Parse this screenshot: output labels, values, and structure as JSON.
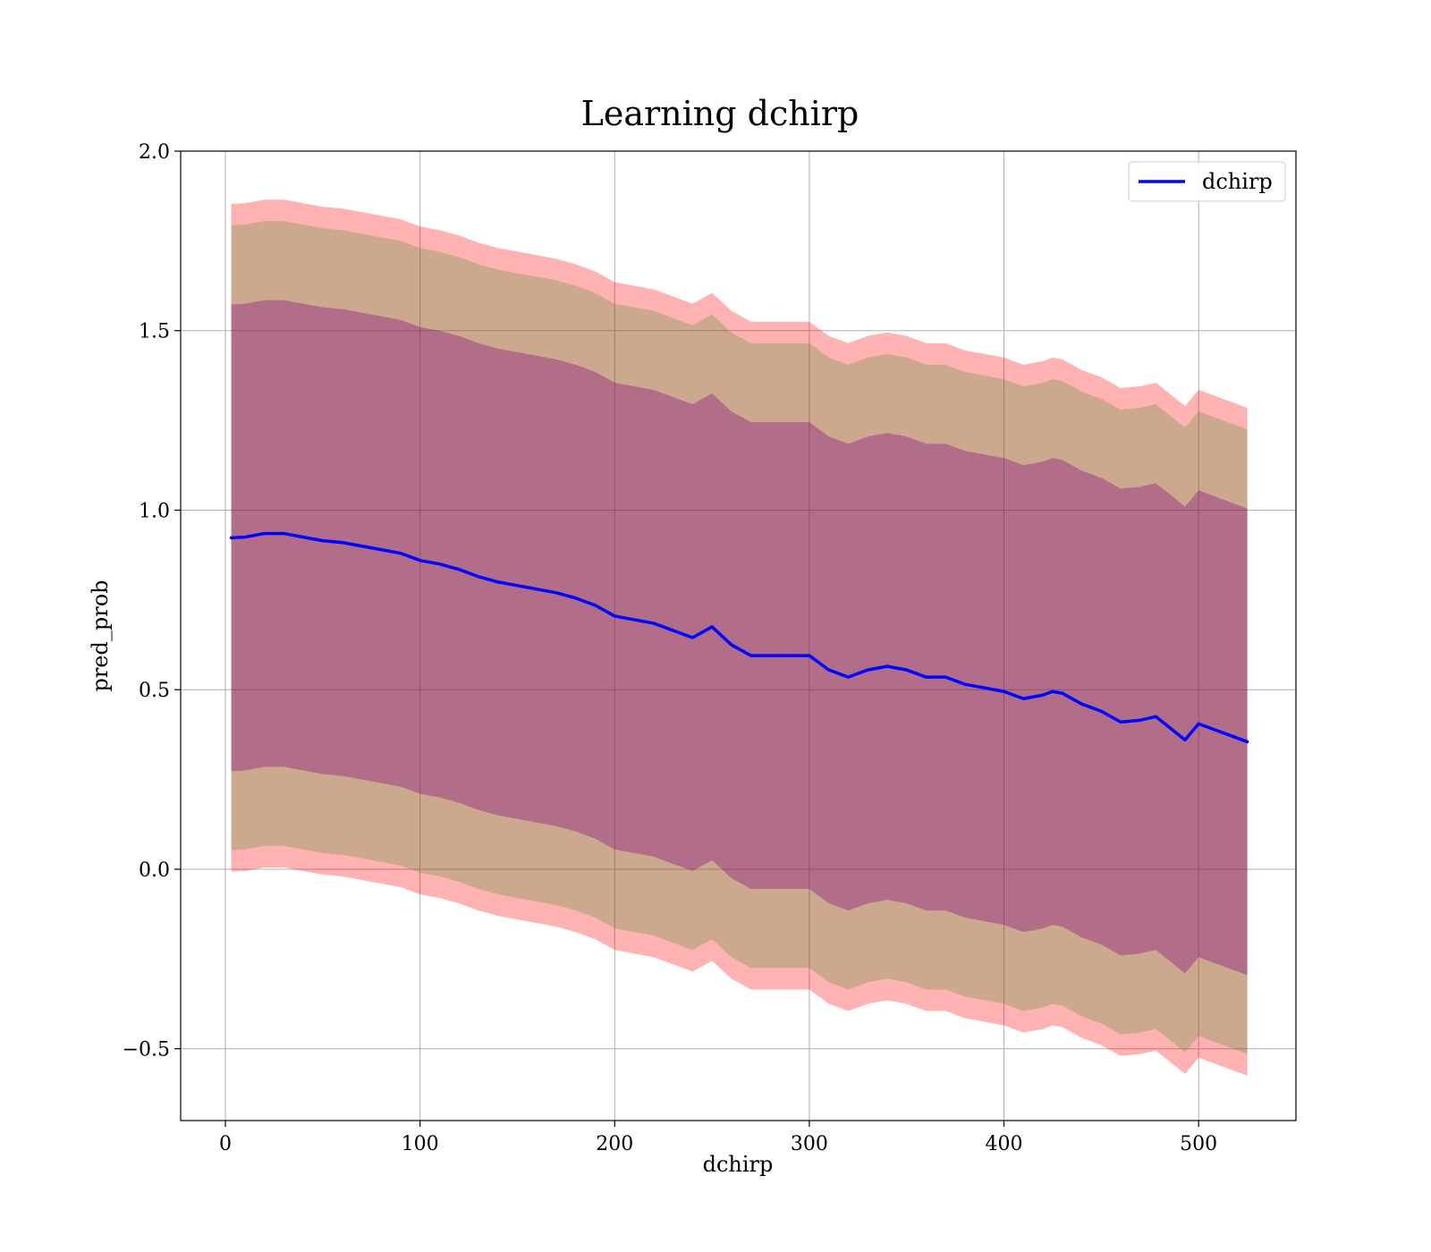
{
  "chart_data": {
    "type": "line",
    "title": "Learning dchirp",
    "xlabel": "dchirp",
    "ylabel": "pred_prob",
    "xlim": [
      -23,
      550
    ],
    "ylim": [
      -0.7,
      2.0
    ],
    "grid": true,
    "legend_position": "top-right",
    "x_ticks": [
      0,
      100,
      200,
      300,
      400,
      500
    ],
    "x_tick_labels": [
      "0",
      "100",
      "200",
      "300",
      "400",
      "500"
    ],
    "y_ticks": [
      -0.5,
      0.0,
      0.5,
      1.0,
      1.5,
      2.0
    ],
    "y_tick_labels": [
      "−0.5",
      "0.0",
      "0.5",
      "1.0",
      "1.5",
      "2.0"
    ],
    "series": [
      {
        "name": "dchirp",
        "color": "#0000ff",
        "x": [
          3,
          10,
          20,
          30,
          40,
          50,
          60,
          70,
          80,
          90,
          100,
          110,
          120,
          130,
          140,
          150,
          160,
          170,
          180,
          190,
          200,
          210,
          220,
          230,
          240,
          250,
          260,
          270,
          280,
          290,
          300,
          310,
          320,
          330,
          340,
          350,
          360,
          370,
          380,
          390,
          400,
          410,
          420,
          425,
          430,
          440,
          450,
          460,
          470,
          478,
          485,
          493,
          500,
          510,
          525
        ],
        "y": [
          0.923,
          0.925,
          0.935,
          0.935,
          0.925,
          0.915,
          0.91,
          0.9,
          0.89,
          0.88,
          0.86,
          0.85,
          0.835,
          0.815,
          0.8,
          0.79,
          0.78,
          0.77,
          0.755,
          0.735,
          0.705,
          0.695,
          0.685,
          0.665,
          0.645,
          0.675,
          0.625,
          0.595,
          0.595,
          0.595,
          0.595,
          0.555,
          0.535,
          0.555,
          0.565,
          0.555,
          0.535,
          0.535,
          0.515,
          0.505,
          0.495,
          0.475,
          0.485,
          0.495,
          0.49,
          0.46,
          0.44,
          0.41,
          0.415,
          0.425,
          0.395,
          0.36,
          0.405,
          0.385,
          0.355
        ]
      }
    ],
    "bands": [
      {
        "name": "band_1",
        "color": "#ff0000",
        "opacity": 0.3,
        "half_width": 0.93
      },
      {
        "name": "band_2",
        "color": "#008000",
        "opacity": 0.2,
        "half_width": 0.87
      },
      {
        "name": "band_3",
        "color": "#800080",
        "opacity": 0.35,
        "half_width": 0.65
      }
    ]
  }
}
